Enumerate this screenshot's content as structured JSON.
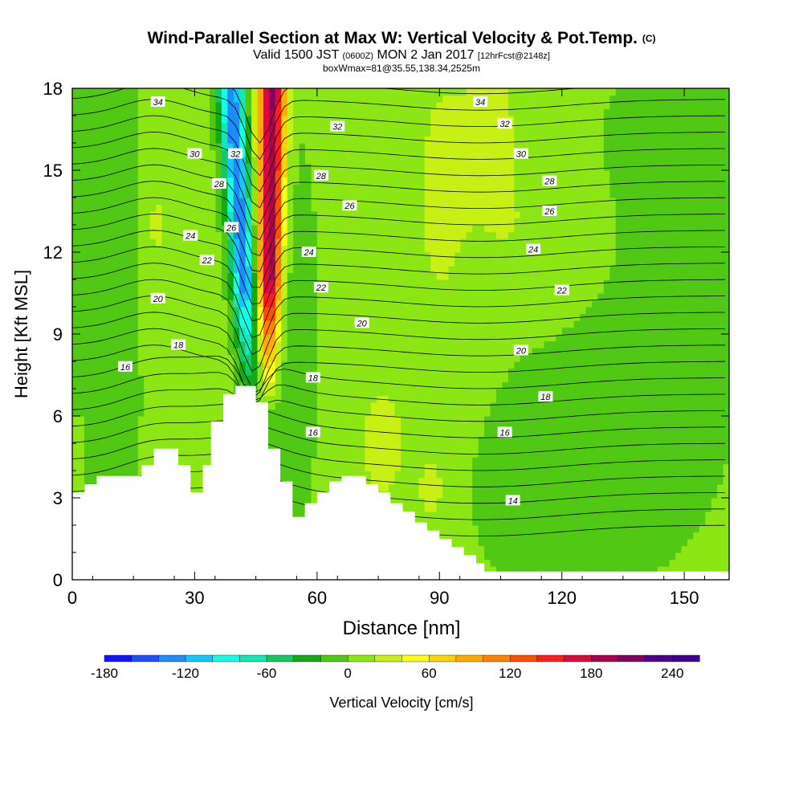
{
  "title": {
    "main": "Wind-Parallel Section at Max W: Vertical Velocity & Pot.Temp.",
    "copyright": "(C)",
    "valid_prefix": "Valid 1500 JST",
    "valid_utc": "(0600Z)",
    "valid_date": "MON 2 Jan 2017",
    "forecast": "[12hrFcst@2148z]",
    "box": "boxWmax=81@35.55,138.34,2525m"
  },
  "chart_data": {
    "type": "heatmap",
    "xlabel": "Distance [nm]",
    "ylabel": "Height [Kft MSL]",
    "xlim": [
      0,
      161
    ],
    "ylim": [
      0,
      18
    ],
    "x_ticks": [
      "0",
      "30",
      "60",
      "90",
      "120",
      "150"
    ],
    "y_ticks": [
      "0",
      "3",
      "6",
      "9",
      "12",
      "15",
      "18"
    ],
    "colorbar": {
      "label": "Vertical Velocity [cm/s]",
      "min": -180,
      "max": 260,
      "step": 20,
      "tick_labels": [
        "-180",
        "-120",
        "-60",
        "0",
        "60",
        "120",
        "180",
        "240"
      ],
      "colors": [
        "#1414ff",
        "#1e50ff",
        "#1e8cff",
        "#14c8ff",
        "#14ffe6",
        "#14e6b4",
        "#14c864",
        "#14aa14",
        "#50c814",
        "#8ce614",
        "#c8f014",
        "#ffff14",
        "#ffd200",
        "#ffaa00",
        "#ff8200",
        "#ff5000",
        "#ff1e1e",
        "#dc0a3c",
        "#aa0050",
        "#820064",
        "#50008c",
        "#3c0096"
      ]
    },
    "terrain_kft": [
      [
        0,
        3.2
      ],
      [
        3,
        3.5
      ],
      [
        6,
        3.8
      ],
      [
        17,
        4.2
      ],
      [
        20,
        4.8
      ],
      [
        26,
        4.2
      ],
      [
        29,
        3.2
      ],
      [
        32,
        4.2
      ],
      [
        34,
        5.8
      ],
      [
        37,
        6.8
      ],
      [
        40,
        7.1
      ],
      [
        45,
        6.5
      ],
      [
        48,
        4.8
      ],
      [
        51,
        3.6
      ],
      [
        54,
        2.3
      ],
      [
        57,
        2.8
      ],
      [
        60,
        3.2
      ],
      [
        63,
        3.6
      ],
      [
        66,
        3.8
      ],
      [
        72,
        3.5
      ],
      [
        75,
        3.2
      ],
      [
        78,
        2.8
      ],
      [
        81,
        2.5
      ],
      [
        84,
        2.1
      ],
      [
        87,
        1.8
      ],
      [
        90,
        1.5
      ],
      [
        93,
        1.2
      ],
      [
        96,
        0.9
      ],
      [
        99,
        0.6
      ],
      [
        101,
        0.3
      ],
      [
        103,
        0.3
      ],
      [
        161,
        0.3
      ]
    ],
    "theta_contours": [
      {
        "label": "34",
        "label_pos": [
          21,
          17.5
        ]
      },
      {
        "label": "32",
        "label_pos": [
          65,
          16.6
        ]
      },
      {
        "label": "30",
        "label_pos": [
          30,
          15.6
        ]
      },
      {
        "label": "28",
        "label_pos": [
          61,
          14.8
        ]
      },
      {
        "label": "26",
        "label_pos": [
          68,
          13.7
        ]
      },
      {
        "label": "24",
        "label_pos": [
          29,
          12.6
        ]
      },
      {
        "label": "22",
        "label_pos": [
          33,
          11.7
        ]
      },
      {
        "label": "20",
        "label_pos": [
          21,
          10.3
        ]
      },
      {
        "label": "18",
        "label_pos": [
          26,
          8.6
        ]
      },
      {
        "label": "16",
        "label_pos": [
          13,
          7.8
        ]
      }
    ],
    "contour_labels_right": [
      {
        "label": "34",
        "label_pos": [
          100,
          17.5
        ]
      },
      {
        "label": "32",
        "label_pos": [
          106,
          16.7
        ]
      },
      {
        "label": "30",
        "label_pos": [
          110,
          15.6
        ]
      },
      {
        "label": "28",
        "label_pos": [
          117,
          14.6
        ]
      },
      {
        "label": "26",
        "label_pos": [
          117,
          13.5
        ]
      },
      {
        "label": "24",
        "label_pos": [
          113,
          12.1
        ]
      },
      {
        "label": "24",
        "label_pos": [
          58,
          12.0
        ]
      },
      {
        "label": "22",
        "label_pos": [
          61,
          10.7
        ]
      },
      {
        "label": "22",
        "label_pos": [
          120,
          10.6
        ]
      },
      {
        "label": "20",
        "label_pos": [
          71,
          9.4
        ]
      },
      {
        "label": "20",
        "label_pos": [
          110,
          8.4
        ]
      },
      {
        "label": "18",
        "label_pos": [
          59,
          7.4
        ]
      },
      {
        "label": "18",
        "label_pos": [
          116,
          6.7
        ]
      },
      {
        "label": "16",
        "label_pos": [
          59,
          5.4
        ]
      },
      {
        "label": "16",
        "label_pos": [
          106,
          5.4
        ]
      },
      {
        "label": "14",
        "label_pos": [
          108,
          2.9
        ]
      },
      {
        "label": "32",
        "label_pos": [
          40,
          15.6
        ]
      },
      {
        "label": "28",
        "label_pos": [
          36,
          14.5
        ]
      },
      {
        "label": "26",
        "label_pos": [
          39,
          12.9
        ]
      }
    ],
    "wmax_cm_s": 81
  }
}
